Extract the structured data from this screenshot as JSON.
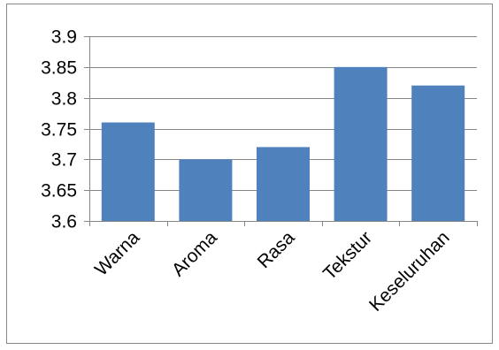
{
  "chart_data": {
    "type": "bar",
    "title": "",
    "xlabel": "",
    "ylabel": "",
    "categories": [
      "Warna",
      "Aroma",
      "Rasa",
      "Tekstur",
      "Keseluruhan"
    ],
    "series": [
      {
        "values": [
          3.76,
          3.7,
          3.72,
          3.85,
          3.82
        ]
      }
    ],
    "ylim": [
      3.6,
      3.9
    ],
    "yticks": [
      3.6,
      3.65,
      3.7,
      3.75,
      3.8,
      3.85,
      3.9
    ],
    "ytick_labels": [
      "3.6",
      "3.65",
      "3.7",
      "3.75",
      "3.8",
      "3.85",
      "3.9"
    ],
    "grid": true,
    "legend": "none",
    "colors": {
      "bar": "#4F81BD",
      "grid": "#868686",
      "axis": "#868686",
      "border": "#878787"
    }
  }
}
